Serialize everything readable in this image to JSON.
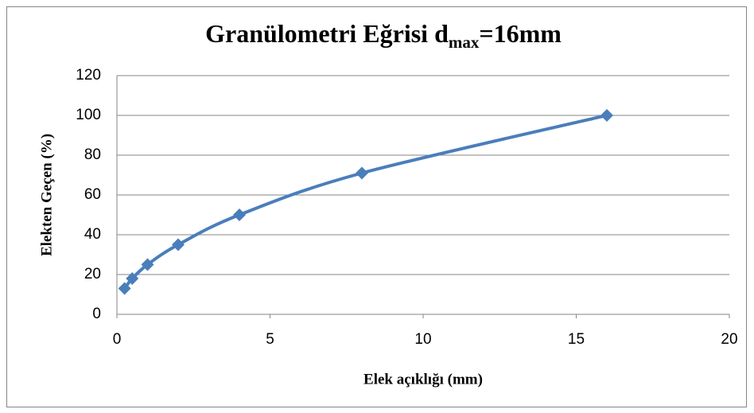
{
  "chart_data": {
    "type": "scatter",
    "smooth": true,
    "title": [
      "Granülometri Eğrisi d",
      "max",
      "=16mm"
    ],
    "xlabel": "Elek açıklığı (mm)",
    "ylabel": "Elekten Geçen (%)",
    "x": [
      0.25,
      0.5,
      1,
      2,
      4,
      8,
      16
    ],
    "values": [
      13,
      18,
      25,
      35,
      50,
      71,
      100
    ],
    "color": "#4a7ebb",
    "xlim": [
      0,
      20
    ],
    "xticks": [
      0,
      5,
      10,
      15,
      20
    ],
    "ylim": [
      0,
      120
    ],
    "yticks": [
      0,
      20,
      40,
      60,
      80,
      100,
      120
    ],
    "grid": true
  }
}
